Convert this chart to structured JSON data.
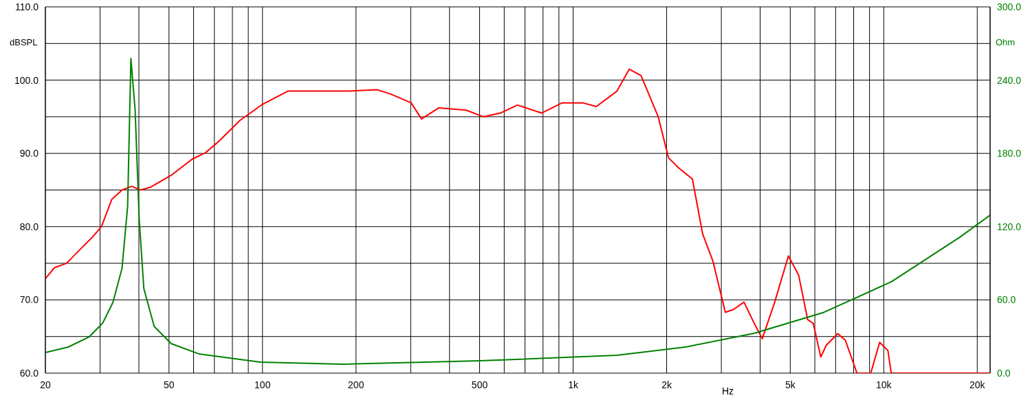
{
  "chart_data": {
    "type": "line",
    "xlabel": "Hz",
    "ylabel": "dBSPL",
    "y2label": "Ohm",
    "log": "x",
    "grid": true,
    "xlim": [
      20,
      22000
    ],
    "ylim": [
      60,
      110
    ],
    "y2lim": [
      0,
      300
    ],
    "xticks": [
      20,
      {
        "value": 30,
        "label": null
      },
      {
        "value": 40,
        "label": null
      },
      50,
      {
        "value": 60,
        "label": null
      },
      {
        "value": 70,
        "label": null
      },
      {
        "value": 80,
        "label": null
      },
      {
        "value": 90,
        "label": null
      },
      100,
      200,
      {
        "value": 300,
        "label": null
      },
      {
        "value": 400,
        "label": null
      },
      500,
      {
        "value": 600,
        "label": null
      },
      {
        "value": 700,
        "label": null
      },
      {
        "value": 800,
        "label": null
      },
      {
        "value": 900,
        "label": null
      },
      {
        "value": 1000,
        "label": "1k"
      },
      {
        "value": 2000,
        "label": "2k"
      },
      {
        "value": 3000,
        "label": null
      },
      {
        "value": 4000,
        "label": null
      },
      {
        "value": 5000,
        "label": "5k"
      },
      {
        "value": 6000,
        "label": null
      },
      {
        "value": 7000,
        "label": null
      },
      {
        "value": 8000,
        "label": null
      },
      {
        "value": 9000,
        "label": null
      },
      {
        "value": 10000,
        "label": "10k"
      },
      {
        "value": 20000,
        "label": "20k"
      }
    ],
    "yticks": [
      {
        "value": 60,
        "label": "60.0"
      },
      {
        "value": 65,
        "label": null
      },
      {
        "value": 70,
        "label": "70.0"
      },
      {
        "value": 75,
        "label": null
      },
      {
        "value": 80,
        "label": "80.0"
      },
      {
        "value": 85,
        "label": null
      },
      {
        "value": 90,
        "label": "90.0"
      },
      {
        "value": 95,
        "label": null
      },
      {
        "value": 100,
        "label": "100.0"
      },
      {
        "value": 105,
        "label": null
      },
      {
        "value": 110,
        "label": "110.0"
      }
    ],
    "y2ticks": [
      {
        "value": 0,
        "label": "0.0"
      },
      {
        "value": 60,
        "label": "60.0"
      },
      {
        "value": 120,
        "label": "120.0"
      },
      {
        "value": 180,
        "label": "180.0"
      },
      {
        "value": 240,
        "label": "240.0"
      },
      {
        "value": 300,
        "label": "300.0"
      }
    ],
    "series": [
      {
        "color": "#ff0000",
        "x": [
          20,
          21.4,
          23.4,
          26.3,
          28.4,
          30.3,
          32.7,
          35.3,
          37.9,
          40.5,
          43.7,
          50.8,
          59.3,
          65.6,
          72.6,
          84.6,
          100,
          120.7,
          155.6,
          190.7,
          233.6,
          258.7,
          301,
          325,
          369,
          452,
          514,
          583,
          662,
          791,
          922,
          1074,
          1188,
          1384,
          1517,
          1655,
          1879,
          2028,
          2188,
          2421,
          2612,
          2818,
          3090,
          3287,
          3548,
          3828,
          4064,
          4456,
          4932,
          5320,
          5689,
          5930,
          6270,
          6530,
          7110,
          7520,
          8200,
          9080,
          9700,
          10310,
          10570,
          21800
        ],
        "values": [
          72.9,
          74.4,
          75.0,
          77.2,
          78.6,
          80.0,
          83.7,
          85.0,
          85.5,
          85.0,
          85.4,
          87.0,
          89.2,
          90.1,
          91.7,
          94.5,
          96.7,
          98.5,
          98.5,
          98.5,
          98.7,
          98.1,
          96.9,
          94.7,
          96.2,
          95.9,
          95.0,
          95.5,
          96.6,
          95.5,
          96.9,
          96.9,
          96.4,
          98.5,
          101.5,
          100.6,
          95.0,
          89.4,
          88.0,
          86.5,
          79.0,
          75.3,
          68.3,
          68.7,
          69.7,
          66.8,
          64.7,
          69.7,
          76.0,
          73.4,
          67.3,
          66.8,
          62.2,
          63.8,
          65.4,
          64.5,
          60,
          60,
          64.2,
          63.1,
          60,
          60
        ]
      },
      {
        "color": "#008000",
        "axis": "y2",
        "x": [
          20,
          23.7,
          27.7,
          30.6,
          33.0,
          35.3,
          36.8,
          37.7,
          38.9,
          40.1,
          41.5,
          44.8,
          50.8,
          62.3,
          98.5,
          181,
          501,
          1384,
          2301,
          3828,
          6368,
          10570,
          17580,
          22000
        ],
        "values": [
          16.9,
          21.4,
          29.8,
          41.1,
          58,
          86,
          136.7,
          257.7,
          215.5,
          125.5,
          69.2,
          38.3,
          24.2,
          15.8,
          9.0,
          7.3,
          10.1,
          14.6,
          21.4,
          32.6,
          49.5,
          74.8,
          111.4,
          129.4
        ]
      }
    ]
  }
}
